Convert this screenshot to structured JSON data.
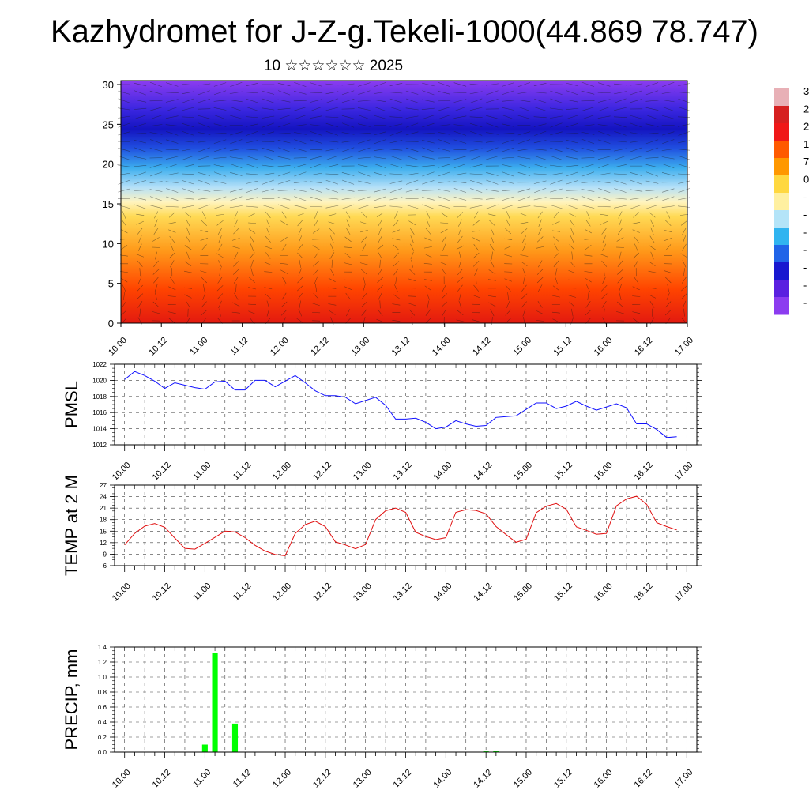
{
  "title": "Kazhydromet for J-Z-g.Tekeli-1000(44.869 78.747)",
  "subtitle": "10 ☆☆☆☆☆☆ 2025",
  "colorbar": {
    "labels": [
      "3",
      "2",
      "2",
      "1",
      "7",
      "0",
      "-",
      "-",
      "-",
      "-",
      "-",
      "-",
      "-"
    ],
    "colors": [
      "#e8b0b6",
      "#d62020",
      "#f01818",
      "#ff5a00",
      "#ff9800",
      "#ffd840",
      "#fff0a0",
      "#b4e4f8",
      "#30b4f0",
      "#2064e8",
      "#1818d0",
      "#5a20e0",
      "#8c3cf0"
    ]
  },
  "chart_data": [
    {
      "type": "heatmap",
      "name": "vertical-profile",
      "x_ticks": [
        "10.00",
        "10.12",
        "11.00",
        "11.12",
        "12.00",
        "12.12",
        "13.00",
        "13.12",
        "14.00",
        "14.12",
        "15.00",
        "15.12",
        "16.00",
        "16.12",
        "17.00"
      ],
      "y_ticks": [
        "0",
        "5",
        "10",
        "15",
        "20",
        "25",
        "30"
      ],
      "ylim": [
        0,
        30.5
      ],
      "xlim": [
        0,
        14
      ]
    },
    {
      "type": "line",
      "name": "pmsl",
      "ylabel": "PMSL",
      "x_ticks": [
        "10.00",
        "10.12",
        "11.00",
        "11.12",
        "12.00",
        "12.12",
        "13.00",
        "13.12",
        "14.00",
        "14.12",
        "15.00",
        "15.12",
        "16.00",
        "16.12",
        "17.00"
      ],
      "y_ticks": [
        "1012",
        "1014",
        "1016",
        "1018",
        "1020",
        "1022"
      ],
      "ylim": [
        1012,
        1022
      ],
      "xlim": [
        -0.25,
        14.25
      ],
      "color": "#1010ff",
      "x": [
        0,
        0.25,
        0.5,
        0.75,
        1,
        1.25,
        1.5,
        1.75,
        2,
        2.25,
        2.5,
        2.75,
        3,
        3.25,
        3.5,
        3.75,
        4,
        4.25,
        4.5,
        4.75,
        5,
        5.25,
        5.5,
        5.75,
        6,
        6.25,
        6.5,
        6.75,
        7,
        7.25,
        7.5,
        7.75,
        8,
        8.25,
        8.5,
        8.75,
        9,
        9.25,
        9.5,
        9.75,
        10,
        10.25,
        10.5,
        10.75,
        11,
        11.25,
        11.5,
        11.75,
        12,
        12.25,
        12.5,
        12.75,
        13,
        13.25,
        13.5,
        13.75
      ],
      "y": [
        1020.1,
        1021.1,
        1020.6,
        1019.9,
        1019.0,
        1019.7,
        1019.4,
        1019.1,
        1018.9,
        1019.8,
        1019.9,
        1018.8,
        1018.8,
        1020.0,
        1020.0,
        1019.2,
        1019.9,
        1020.6,
        1019.7,
        1018.7,
        1018.1,
        1018.1,
        1017.9,
        1017.1,
        1017.5,
        1017.9,
        1016.9,
        1015.2,
        1015.2,
        1015.3,
        1014.8,
        1014.0,
        1014.2,
        1015.0,
        1014.6,
        1014.3,
        1014.4,
        1015.4,
        1015.5,
        1015.6,
        1016.4,
        1017.2,
        1017.2,
        1016.5,
        1016.8,
        1017.4,
        1016.8,
        1016.3,
        1016.7,
        1017.1,
        1016.6,
        1014.6,
        1014.6,
        1013.9,
        1012.9,
        1013.0
      ]
    },
    {
      "type": "line",
      "name": "temp-2m",
      "ylabel": "TEMP at 2 M",
      "x_ticks": [
        "10.00",
        "10.12",
        "11.00",
        "11.12",
        "12.00",
        "12.12",
        "13.00",
        "13.12",
        "14.00",
        "14.12",
        "15.00",
        "15.12",
        "16.00",
        "16.12",
        "17.00"
      ],
      "y_ticks": [
        "6",
        "9",
        "12",
        "15",
        "18",
        "21",
        "24",
        "27"
      ],
      "ylim": [
        6,
        27
      ],
      "xlim": [
        -0.25,
        14.25
      ],
      "color": "#e01010",
      "x": [
        0,
        0.25,
        0.5,
        0.75,
        1,
        1.25,
        1.5,
        1.75,
        2,
        2.25,
        2.5,
        2.75,
        3,
        3.25,
        3.5,
        3.75,
        4,
        4.25,
        4.5,
        4.75,
        5,
        5.25,
        5.5,
        5.75,
        6,
        6.25,
        6.5,
        6.75,
        7,
        7.25,
        7.5,
        7.75,
        8,
        8.25,
        8.5,
        8.75,
        9,
        9.25,
        9.5,
        9.75,
        10,
        10.25,
        10.5,
        10.75,
        11,
        11.25,
        11.5,
        11.75,
        12,
        12.25,
        12.5,
        12.75,
        13,
        13.25,
        13.5,
        13.75
      ],
      "y": [
        11.4,
        14.4,
        16.3,
        17.0,
        16.0,
        13.2,
        10.5,
        10.3,
        11.8,
        13.4,
        15.0,
        14.8,
        13.3,
        11.3,
        9.8,
        8.9,
        8.6,
        14.4,
        16.7,
        17.6,
        16.2,
        12.2,
        11.4,
        10.4,
        11.5,
        18.0,
        20.3,
        21.0,
        19.9,
        14.7,
        13.6,
        12.8,
        13.3,
        19.9,
        20.6,
        20.4,
        19.5,
        16.2,
        14.1,
        12.1,
        12.9,
        19.8,
        21.5,
        22.2,
        20.7,
        16.1,
        15.2,
        14.2,
        14.4,
        21.6,
        23.4,
        24.1,
        22.0,
        17.2,
        16.2,
        15.3
      ]
    },
    {
      "type": "bar",
      "name": "precip",
      "ylabel": "PRECIP, mm",
      "x_ticks": [
        "10.00",
        "10.12",
        "11.00",
        "11.12",
        "12.00",
        "12.12",
        "13.00",
        "13.12",
        "14.00",
        "14.12",
        "15.00",
        "15.12",
        "16.00",
        "16.12",
        "17.00"
      ],
      "y_ticks": [
        "0.0",
        "0.2",
        "0.4",
        "0.6",
        "0.8",
        "1.0",
        "1.2",
        "1.4"
      ],
      "ylim": [
        0,
        1.4
      ],
      "xlim": [
        -0.25,
        14.25
      ],
      "color": "#00ff00",
      "x": [
        2,
        2.25,
        2.75,
        9,
        9.25
      ],
      "y": [
        0.1,
        1.32,
        0.38,
        0.01,
        0.02
      ]
    }
  ]
}
